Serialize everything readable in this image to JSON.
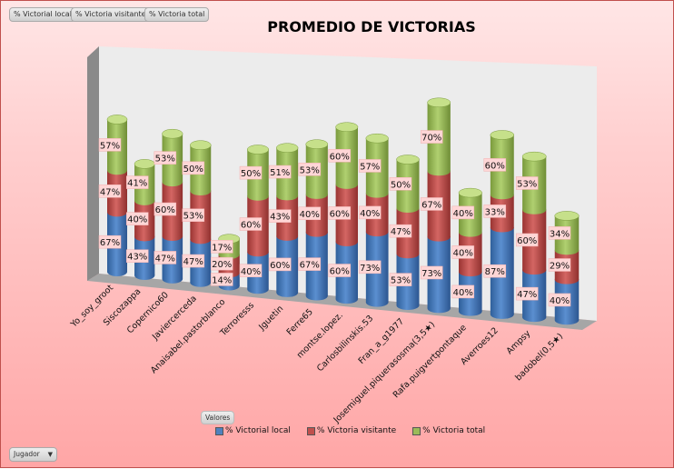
{
  "field_buttons": [
    "% Victorial local",
    "% Victoria visitante",
    "% Victoria total"
  ],
  "values_button": "Valores",
  "filter_button": {
    "label": "Jugador",
    "icon": "dropdown-arrow-icon"
  },
  "colors": {
    "local": "#4f81bd",
    "visitante": "#c0504d",
    "total": "#9bbb59",
    "background": "#ffb0b0",
    "label_box": "#ffd6d6"
  },
  "chart_data": {
    "type": "bar",
    "subtype": "3d-stacked-cylinder",
    "title": "PROMEDIO DE VICTORIAS",
    "legend_position": "bottom",
    "categories": [
      "Yo_soy_groot",
      "Siscozappa",
      "Copernico60",
      "Javiercerceda",
      "Anaisabel.pastorblanco",
      "Terroresss",
      "Jguetin",
      "Ferre65",
      "montse.lopez.",
      "Carlosbilinskis.53",
      "Fran_a_g1977",
      "Josemiguel.piquerasosma(3,5★)",
      "Rafa.puigvertpontaque",
      "Averroes12",
      "Ampsy",
      "badobel(0,5★)"
    ],
    "series": [
      {
        "name": "% Victorial local",
        "values": [
          67,
          43,
          47,
          47,
          14,
          40,
          60,
          67,
          60,
          73,
          53,
          73,
          40,
          87,
          47,
          40
        ]
      },
      {
        "name": "% Victoria visitante",
        "values": [
          47,
          40,
          60,
          53,
          20,
          60,
          43,
          40,
          60,
          40,
          47,
          67,
          40,
          33,
          60,
          29
        ]
      },
      {
        "name": "% Victoria total",
        "values": [
          57,
          41,
          53,
          50,
          17,
          50,
          51,
          53,
          60,
          57,
          50,
          70,
          40,
          60,
          53,
          34
        ]
      }
    ],
    "value_format": "percent"
  }
}
